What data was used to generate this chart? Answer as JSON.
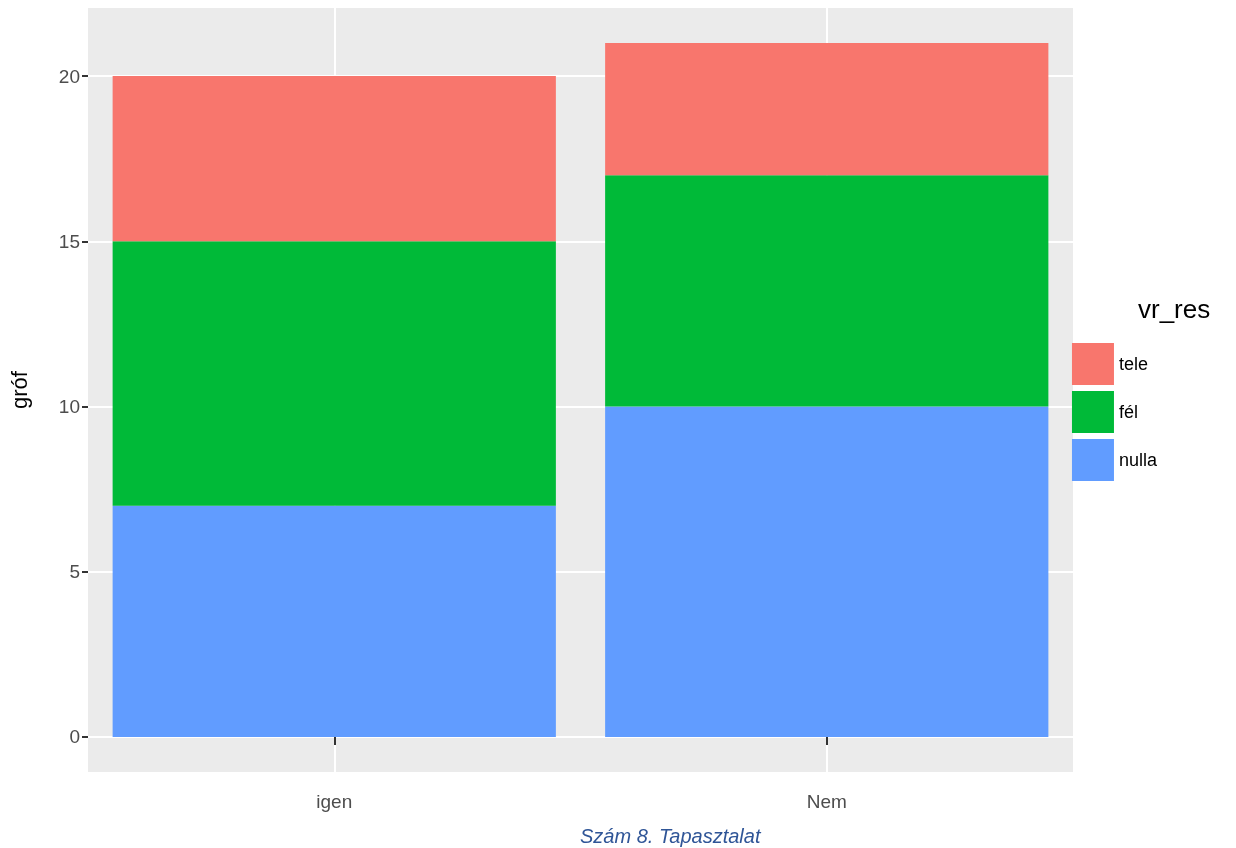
{
  "chart_data": {
    "type": "bar",
    "stacked": true,
    "ylabel": "gróf",
    "legend_title": "vr_res",
    "categories": [
      "igen",
      "Nem"
    ],
    "series": [
      {
        "name": "nulla",
        "color": "#619cff",
        "values": [
          7,
          10
        ]
      },
      {
        "name": "fél",
        "color": "#00ba38",
        "values": [
          8,
          7
        ]
      },
      {
        "name": "tele",
        "color": "#f8766d",
        "values": [
          5,
          4
        ]
      }
    ],
    "ylim": [
      -1.06,
      22.06
    ],
    "yticks": [
      0,
      5,
      10,
      15,
      20
    ],
    "grid": true,
    "legend": "right",
    "annotations": [
      "Szám 8. Tapasztalat"
    ]
  }
}
